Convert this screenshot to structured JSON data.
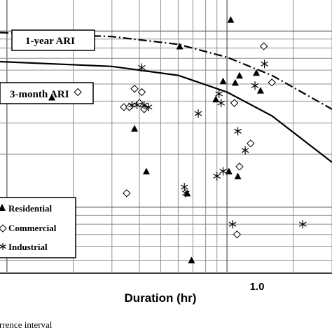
{
  "chart_data": {
    "type": "scatter",
    "xlabel": "Duration (hr)",
    "x_scale": "log",
    "y_scale": "log",
    "grid": true,
    "xlim": [
      0.093,
      3.0
    ],
    "x_ticks": [
      {
        "value": 1.0,
        "label": "1.0"
      }
    ],
    "legend_position": "bottom-left",
    "curves": [
      {
        "name": "1-year ARI",
        "style": "dash-dot",
        "x": [
          0.093,
          0.3,
          0.6,
          1.0,
          1.6,
          3.0
        ],
        "y": [
          0.98,
          0.93,
          0.84,
          0.71,
          0.56,
          0.36
        ]
      },
      {
        "name": "3-month ARI",
        "style": "solid",
        "x": [
          0.093,
          0.3,
          0.6,
          1.0,
          1.6,
          3.0
        ],
        "y": [
          0.67,
          0.63,
          0.56,
          0.45,
          0.33,
          0.18
        ]
      }
    ],
    "series": [
      {
        "name": "Residential",
        "marker": "triangle",
        "x": [
          0.16,
          0.38,
          0.43,
          0.61,
          0.66,
          0.69,
          0.89,
          0.96,
          1.02,
          1.04,
          1.09,
          1.12,
          1.14,
          1.36,
          1.42
        ],
        "y": [
          0.42,
          0.28,
          0.16,
          0.82,
          0.12,
          0.05,
          0.41,
          0.52,
          0.16,
          1.16,
          0.51,
          0.15,
          0.56,
          0.58,
          0.46
        ]
      },
      {
        "name": "Commercial",
        "marker": "diamond",
        "x": [
          0.21,
          0.34,
          0.35,
          0.36,
          0.38,
          0.4,
          0.41,
          0.42,
          1.08,
          1.11,
          1.14,
          1.28,
          1.47,
          1.6
        ],
        "y": [
          0.45,
          0.37,
          0.12,
          0.37,
          0.47,
          0.39,
          0.45,
          0.36,
          0.39,
          0.07,
          0.17,
          0.23,
          0.82,
          0.51
        ]
      },
      {
        "name": "Industrial",
        "marker": "asterisk",
        "x": [
          0.37,
          0.39,
          0.41,
          0.42,
          0.44,
          0.64,
          0.65,
          0.74,
          0.9,
          0.92,
          0.94,
          0.96,
          1.06,
          1.12,
          1.21,
          1.34,
          1.48,
          2.21
        ],
        "y": [
          0.38,
          0.38,
          0.62,
          0.38,
          0.37,
          0.13,
          0.12,
          0.34,
          0.15,
          0.44,
          0.39,
          0.16,
          0.08,
          0.27,
          0.21,
          0.49,
          0.65,
          0.08
        ]
      }
    ]
  },
  "caption": "rrence interval"
}
